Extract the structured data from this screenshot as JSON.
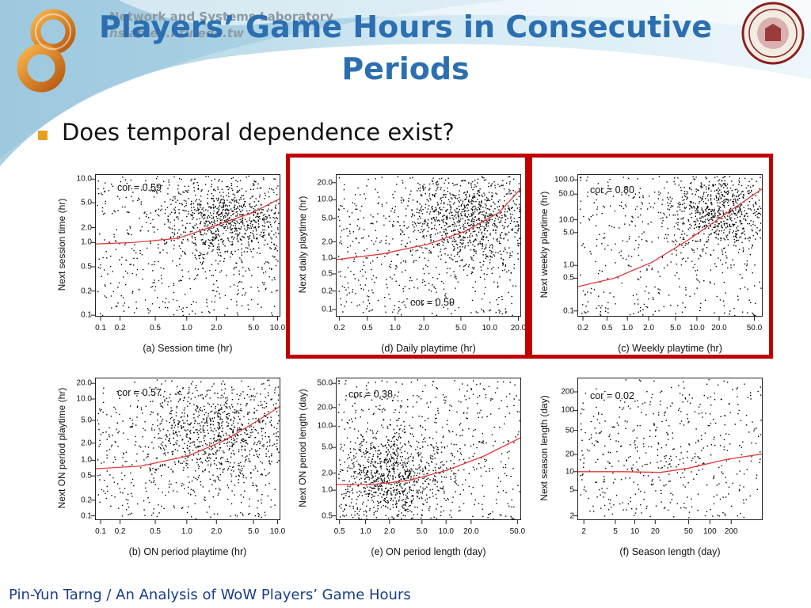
{
  "header": {
    "title_line1": "Players’ Game Hours in Consecutive",
    "title_line2": "Periods",
    "lab_name": "Network and Systems Laboratory",
    "lab_url": "nslab.ee.ntu.edu.tw"
  },
  "bullet": {
    "text": "Does temporal dependence exist?"
  },
  "footer": {
    "text": "Pin-Yun Tarng / An Analysis of WoW Players’ Game Hours"
  },
  "colors": {
    "title": "#2c6fb0",
    "bullet": "#e8a020",
    "highlight": "#c00000",
    "fit_line": "#e23a3a",
    "footer": "#1a3d8a"
  },
  "plots": [
    {
      "id": "a",
      "xlabel": "(a) Session time (hr)",
      "ylabel": "Next session time (hr)",
      "cor": "cor = 0.59",
      "xticks": [
        "0.1",
        "0.2",
        "0.5",
        "1.0",
        "2.0",
        "5.0",
        "10.0"
      ],
      "yticks": [
        "10.0",
        "5.0",
        "2.0",
        "1.0",
        "0.5",
        "0.2",
        "0.1"
      ]
    },
    {
      "id": "d",
      "xlabel": "(d) Daily playtime (hr)",
      "ylabel": "Next daily playtime (hr)",
      "cor": "cor = 0.59",
      "xticks": [
        "0.2",
        "0.5",
        "1.0",
        "2.0",
        "5.0",
        "10.0",
        "20.0"
      ],
      "yticks": [
        "20.0",
        "10.0",
        "5.0",
        "2.0",
        "1.0",
        "0.5",
        "0.2",
        "0.1"
      ]
    },
    {
      "id": "c",
      "xlabel": "(c) Weekly playtime (hr)",
      "ylabel": "Next weekly playtime (hr)",
      "cor": "cor = 0.80",
      "xticks": [
        "0.2",
        "0.5",
        "1.0",
        "2.0",
        "5.0",
        "10.0",
        "20.0",
        "50.0"
      ],
      "yticks": [
        "100.0",
        "50.0",
        "10.0",
        "5.0",
        "1.0",
        "0.5",
        "0.1"
      ]
    },
    {
      "id": "b",
      "xlabel": "(b) ON period playtime (hr)",
      "ylabel": "Next ON period playtime (hr)",
      "cor": "cor = 0.57",
      "xticks": [
        "0.1",
        "0.2",
        "0.5",
        "1.0",
        "2.0",
        "5.0",
        "10.0"
      ],
      "yticks": [
        "20.0",
        "10.0",
        "5.0",
        "2.0",
        "1.0",
        "0.5",
        "0.2",
        "0.1"
      ]
    },
    {
      "id": "e",
      "xlabel": "(e) ON period length (day)",
      "ylabel": "Next ON period length (day)",
      "cor": "cor = 0.38",
      "xticks": [
        "0.5",
        "1.0",
        "2.0",
        "5.0",
        "10.0",
        "20.0",
        "50.0"
      ],
      "yticks": [
        "50.0",
        "20.0",
        "10.0",
        "5.0",
        "2.0",
        "1.0",
        "0.5"
      ]
    },
    {
      "id": "f",
      "xlabel": "(f) Season length (day)",
      "ylabel": "Next season length (day)",
      "cor": "cor = 0.02",
      "xticks": [
        "2",
        "5",
        "10",
        "20",
        "50",
        "100",
        "200"
      ],
      "yticks": [
        "200",
        "100",
        "50",
        "20",
        "10",
        "5",
        "2"
      ]
    }
  ]
}
